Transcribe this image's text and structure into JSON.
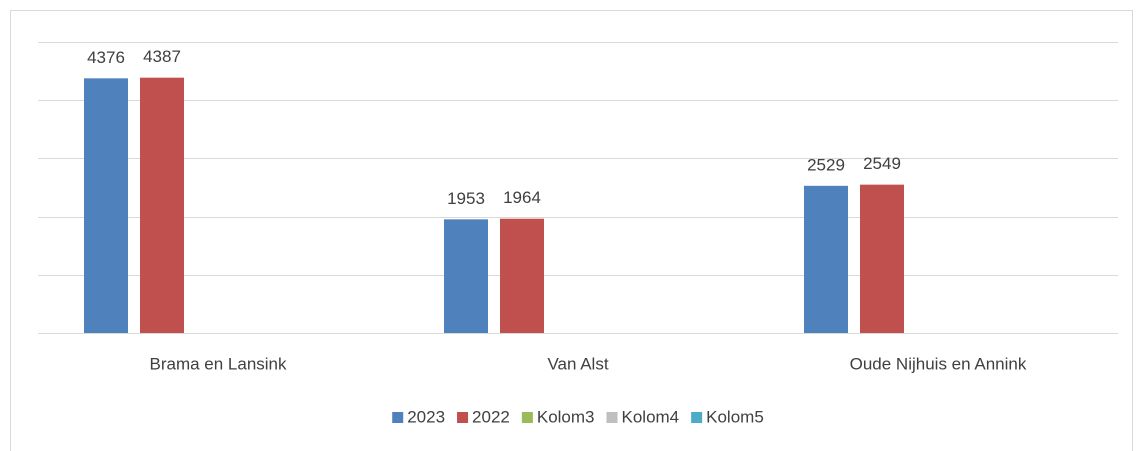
{
  "chart_data": {
    "type": "bar",
    "categories": [
      "Brama en Lansink",
      "Van Alst",
      "Oude Nijhuis en Annink"
    ],
    "series": [
      {
        "name": "2023",
        "color": "#4f81bd",
        "values": [
          4376,
          1953,
          2529
        ]
      },
      {
        "name": "2022",
        "color": "#c0504d",
        "values": [
          4387,
          1964,
          2549
        ]
      },
      {
        "name": "Kolom3",
        "color": "#9bbb59",
        "values": [
          null,
          null,
          null
        ]
      },
      {
        "name": "Kolom4",
        "color": "#bfbfbf",
        "values": [
          null,
          null,
          null
        ]
      },
      {
        "name": "Kolom5",
        "color": "#4bacc6",
        "values": [
          null,
          null,
          null
        ]
      }
    ],
    "ylim": [
      0,
      5000
    ],
    "yticks": [
      0,
      1000,
      2000,
      3000,
      4000,
      5000
    ],
    "grid": true,
    "legend": "bottom"
  }
}
